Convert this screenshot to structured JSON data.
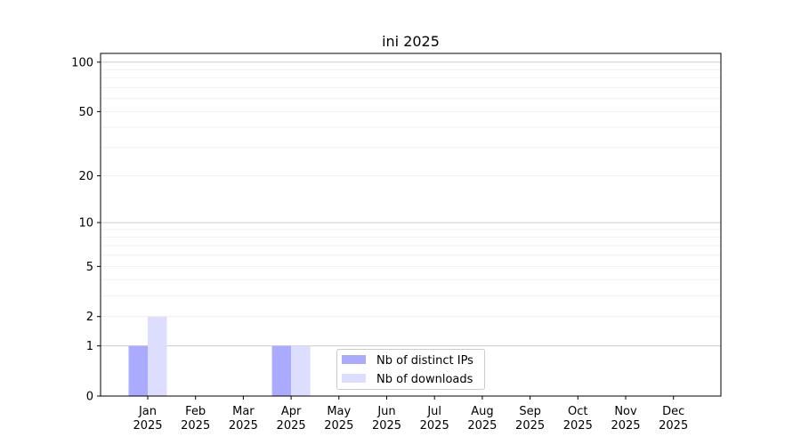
{
  "chart_data": {
    "type": "bar",
    "title": "ini 2025",
    "xlabel": "",
    "ylabel": "",
    "yscale": "log(1+y)",
    "ylim": [
      0,
      113
    ],
    "yticks": [
      0,
      1,
      2,
      5,
      10,
      20,
      50,
      100
    ],
    "grid": true,
    "legend_placement": "lower-center",
    "categories": [
      "Jan\n2025",
      "Feb\n2025",
      "Mar\n2025",
      "Apr\n2025",
      "May\n2025",
      "Jun\n2025",
      "Jul\n2025",
      "Aug\n2025",
      "Sep\n2025",
      "Oct\n2025",
      "Nov\n2025",
      "Dec\n2025"
    ],
    "series": [
      {
        "name": "Nb of distinct IPs",
        "color": "#aaaaff",
        "values": [
          1,
          0,
          0,
          1,
          0,
          0,
          0,
          0,
          0,
          0,
          0,
          0
        ]
      },
      {
        "name": "Nb of downloads",
        "color": "#ddddff",
        "values": [
          2,
          0,
          0,
          1,
          0,
          0,
          0,
          0,
          0,
          0,
          0,
          0
        ]
      }
    ]
  }
}
